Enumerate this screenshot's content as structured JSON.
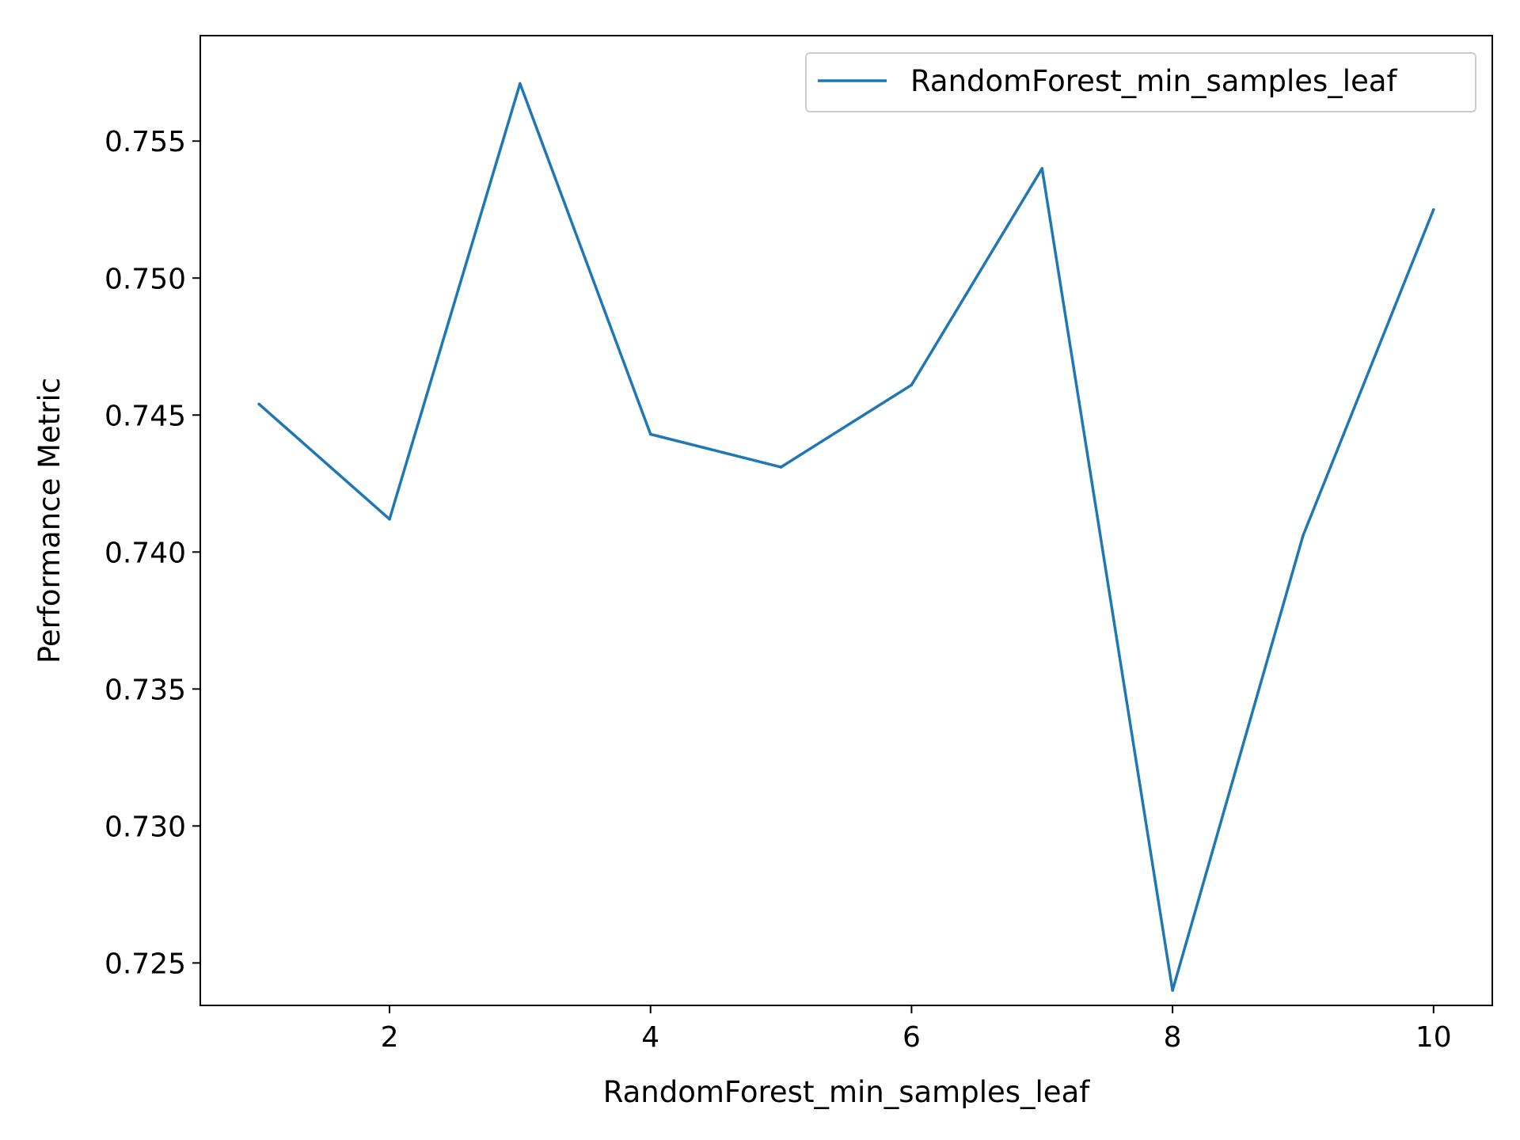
{
  "chart_data": {
    "type": "line",
    "title": "",
    "xlabel": "RandomForest_min_samples_leaf",
    "ylabel": "Performance Metric",
    "xlim": [
      0.55,
      10.45
    ],
    "ylim": [
      0.72345,
      0.75885
    ],
    "xticks": [
      2,
      4,
      6,
      8,
      10
    ],
    "xtick_labels": [
      "2",
      "4",
      "6",
      "8",
      "10"
    ],
    "yticks": [
      0.725,
      0.73,
      0.735,
      0.74,
      0.745,
      0.75,
      0.755
    ],
    "ytick_labels": [
      "0.725",
      "0.730",
      "0.735",
      "0.740",
      "0.745",
      "0.750",
      "0.755"
    ],
    "grid": false,
    "legend_position": "upper right",
    "x": [
      1,
      2,
      3,
      4,
      5,
      6,
      7,
      8,
      9,
      10
    ],
    "series": [
      {
        "name": "RandomForest_min_samples_leaf",
        "color": "#1f77b4",
        "values": [
          0.7454,
          0.7412,
          0.7571,
          0.7443,
          0.7431,
          0.7461,
          0.754,
          0.724,
          0.7406,
          0.7525
        ]
      }
    ]
  }
}
